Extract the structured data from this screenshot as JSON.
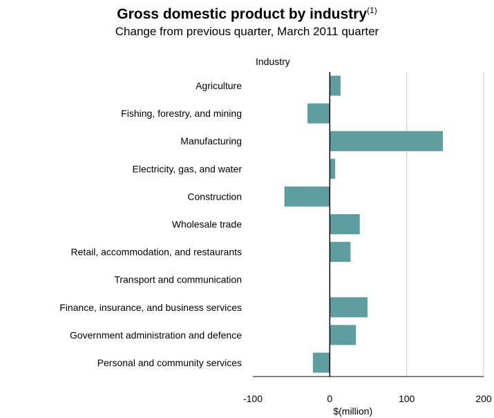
{
  "chart_data": {
    "type": "bar",
    "orientation": "horizontal",
    "title": "Gross domestic product by industry",
    "title_footnote": "(1)",
    "subtitle": "Change from previous quarter, March 2011 quarter",
    "category_axis_label": "Industry",
    "xlabel": "$(million)",
    "xlim": [
      -100,
      200
    ],
    "xticks": [
      -100,
      0,
      100,
      200
    ],
    "grid": true,
    "bar_color": "#5f9ea0",
    "categories": [
      "Agriculture",
      "Fishing, forestry, and mining",
      "Manufacturing",
      "Electricity, gas, and water",
      "Construction",
      "Wholesale trade",
      "Retail, accommodation, and restaurants",
      "Transport and communication",
      "Finance, insurance, and business services",
      "Government administration and defence",
      "Personal and community services"
    ],
    "values": [
      14,
      -29,
      147,
      7,
      -59,
      39,
      27,
      0,
      49,
      34,
      -22
    ]
  }
}
